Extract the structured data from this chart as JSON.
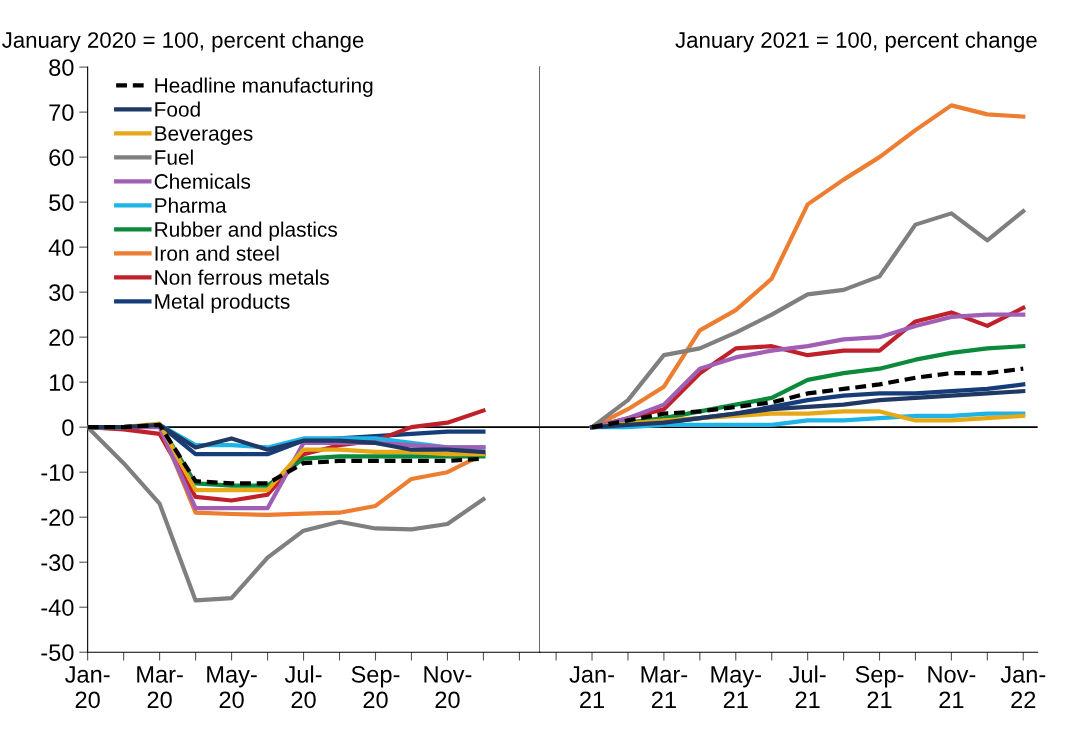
{
  "chart_data": [
    {
      "type": "line",
      "title": "January 2020 = 100, percent change",
      "categories": [
        "Jan-\n20",
        null,
        "Mar-\n20",
        null,
        "May-\n20",
        null,
        "Jul-\n20",
        null,
        "Sep-\n20",
        null,
        "Nov-\n20",
        null,
        null
      ],
      "ylim": [
        -50,
        80
      ],
      "yticks": [
        -50,
        -40,
        -30,
        -20,
        -10,
        0,
        10,
        20,
        30,
        40,
        50,
        60,
        70,
        80
      ],
      "legend": "top left",
      "ref_lines": [
        {
          "axis": "y",
          "value": 0,
          "color": "#000000"
        }
      ],
      "series": [
        {
          "name": "Headline manufacturing",
          "color": "#000000",
          "line_style": "dashed",
          "values": [
            0,
            0,
            0.5,
            -12,
            -12.5,
            -12.5,
            -8,
            -7.5,
            -7.5,
            -7.5,
            -7.5,
            -7,
            null
          ]
        },
        {
          "name": "Food",
          "color": "#1f3864",
          "values": [
            0,
            0,
            0.5,
            -4.5,
            -2.5,
            -5,
            -3,
            -3,
            -3.5,
            -5,
            -5,
            -5.5,
            null
          ]
        },
        {
          "name": "Beverages",
          "color": "#e6a817",
          "values": [
            0,
            0,
            0.8,
            -14,
            -14,
            -14,
            -5,
            -5,
            -5.5,
            -5.5,
            -6,
            -6,
            null
          ]
        },
        {
          "name": "Fuel",
          "color": "#7f7f7f",
          "values": [
            0,
            -8,
            -17,
            -38.5,
            -38,
            -29,
            -23,
            -21,
            -22.5,
            -22.7,
            -21.5,
            -16,
            null
          ]
        },
        {
          "name": "Chemicals",
          "color": "#a05fb4",
          "values": [
            0,
            0,
            0,
            -18,
            -18,
            -18,
            -3.5,
            -3.5,
            -3.5,
            -4,
            -4.5,
            -4.5,
            null
          ]
        },
        {
          "name": "Pharma",
          "color": "#1fb4e6",
          "values": [
            0,
            0,
            0.5,
            -4,
            -4,
            -4.5,
            -2.5,
            -2.5,
            -2.5,
            -3.5,
            -4.5,
            -4.5,
            null
          ]
        },
        {
          "name": "Rubber and plastics",
          "color": "#0b8a3c",
          "values": [
            0,
            0,
            0.5,
            -12.5,
            -13,
            -13,
            -7,
            -6.5,
            -6.5,
            -6.5,
            -6.5,
            -6.5,
            null
          ]
        },
        {
          "name": "Iron and steel",
          "color": "#ed7d31",
          "values": [
            0,
            0,
            0.5,
            -19,
            -19.3,
            -19.5,
            -19.2,
            -19,
            -17.5,
            -11.5,
            -10,
            -6,
            null
          ]
        },
        {
          "name": "Non ferrous metals",
          "color": "#c0202a",
          "values": [
            0,
            -0.5,
            -1.5,
            -15.5,
            -16.3,
            -15,
            -6,
            -4,
            -3,
            0,
            1,
            3.7,
            null
          ]
        },
        {
          "name": "Metal products",
          "color": "#163d7a",
          "values": [
            0,
            0,
            0.5,
            -6,
            -6,
            -6,
            -3,
            -2.5,
            -2,
            -1.5,
            -1,
            -1,
            null
          ]
        }
      ]
    },
    {
      "type": "line",
      "title": "January 2021 = 100, percent change",
      "categories": [
        null,
        "Jan-\n21",
        null,
        "Mar-\n21",
        null,
        "May-\n21",
        null,
        "Jul-\n21",
        null,
        "Sep-\n21",
        null,
        "Nov-\n21",
        null,
        "Jan-\n22"
      ],
      "ylim": [
        -50,
        80
      ],
      "tick_labels": "x",
      "ref_lines": [
        {
          "axis": "y",
          "value": 0,
          "color": "#000000"
        }
      ],
      "series": [
        {
          "color": "#000000",
          "line_style": "dashed",
          "values": [
            null,
            0,
            1.5,
            3,
            3.5,
            4.5,
            5.5,
            7.5,
            8.5,
            9.5,
            11,
            12,
            12,
            13
          ]
        },
        {
          "color": "#1f3864",
          "values": [
            null,
            0,
            0.5,
            1,
            2,
            3,
            4,
            4.5,
            5,
            6,
            6.5,
            7,
            7.5,
            8
          ]
        },
        {
          "color": "#e6a817",
          "values": [
            null,
            0,
            0.8,
            1.5,
            2,
            2.5,
            3,
            3,
            3.5,
            3.5,
            1.5,
            1.5,
            2,
            2.5
          ]
        },
        {
          "color": "#7f7f7f",
          "values": [
            null,
            0,
            6,
            16,
            17.5,
            21,
            25,
            29.5,
            30.5,
            33.5,
            45,
            47.5,
            41.5,
            48
          ]
        },
        {
          "color": "#a05fb4",
          "values": [
            null,
            0,
            2,
            5,
            13,
            15.5,
            17,
            18,
            19.5,
            20,
            22.5,
            24.5,
            25,
            25
          ]
        },
        {
          "color": "#1fb4e6",
          "values": [
            null,
            0,
            0,
            0.5,
            0.5,
            0.5,
            0.5,
            1.5,
            1.5,
            2,
            2.5,
            2.5,
            3,
            3
          ]
        },
        {
          "color": "#0b8a3c",
          "values": [
            null,
            0,
            1,
            2,
            3.5,
            5,
            6.5,
            10.5,
            12,
            13,
            15,
            16.5,
            17.5,
            18
          ]
        },
        {
          "color": "#ed7d31",
          "values": [
            null,
            0,
            4,
            9,
            21.5,
            26,
            33,
            49.5,
            55,
            60,
            66,
            71.5,
            69.5,
            69
          ]
        },
        {
          "color": "#c0202a",
          "values": [
            null,
            0,
            2,
            4,
            12,
            17.5,
            18,
            16,
            17,
            17,
            23.5,
            25.5,
            22.5,
            26.5
          ]
        },
        {
          "color": "#163d7a",
          "values": [
            null,
            0,
            0.5,
            1,
            2,
            3,
            4.5,
            6,
            7,
            7.5,
            7.5,
            8,
            8.5,
            9.5
          ]
        }
      ]
    }
  ]
}
